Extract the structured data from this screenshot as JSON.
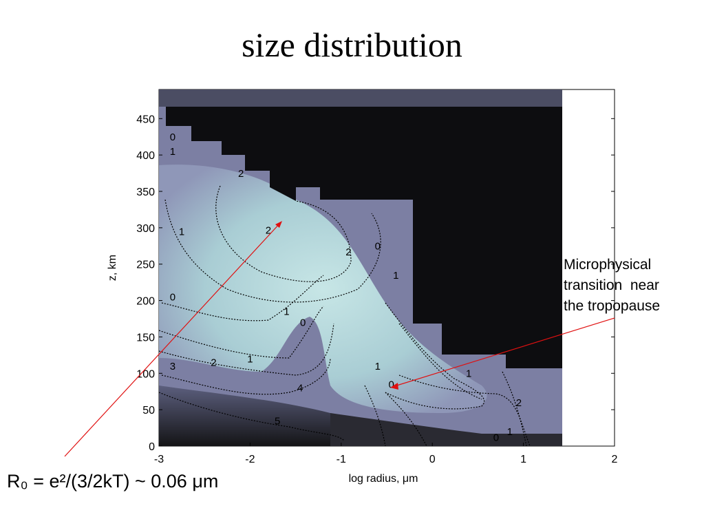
{
  "title": "size distribution",
  "annotations": {
    "microphysical": [
      "Microphysical",
      "transition  near",
      "the tropopause"
    ],
    "formula": "R₀ = e²/(3/2kT) ~ 0.06 μm"
  },
  "colors": {
    "background": "#ffffff",
    "dark": "#0b0b0b",
    "light": "#bfe0e0",
    "mid": "#8a8cb0",
    "arrow": "#e01010"
  },
  "chart_data": {
    "type": "heatmap",
    "title": "size distribution",
    "xlabel": "log radius, μm",
    "ylabel": "z, km",
    "xlim": [
      -3,
      2
    ],
    "ylim": [
      0,
      490
    ],
    "xticks": [
      -3,
      -2,
      -1,
      0,
      1,
      2
    ],
    "yticks": [
      0,
      50,
      100,
      150,
      200,
      250,
      300,
      350,
      400,
      450
    ],
    "contour_labels": [
      {
        "x": -1.8,
        "y": 292,
        "text": "2"
      },
      {
        "x": -0.92,
        "y": 262,
        "text": "2"
      },
      {
        "x": -2.75,
        "y": 290,
        "text": "1"
      },
      {
        "x": -2.85,
        "y": 200,
        "text": "0"
      },
      {
        "x": -1.6,
        "y": 180,
        "text": "1"
      },
      {
        "x": -1.42,
        "y": 165,
        "text": "0"
      },
      {
        "x": -2.4,
        "y": 110,
        "text": "2"
      },
      {
        "x": -2.0,
        "y": 115,
        "text": "1"
      },
      {
        "x": -2.85,
        "y": 105,
        "text": "3"
      },
      {
        "x": -1.45,
        "y": 75,
        "text": "4"
      },
      {
        "x": -1.7,
        "y": 30,
        "text": "5"
      },
      {
        "x": -0.45,
        "y": 80,
        "text": "0"
      },
      {
        "x": -0.6,
        "y": 105,
        "text": "1"
      },
      {
        "x": 0.4,
        "y": 95,
        "text": "1"
      },
      {
        "x": 0.7,
        "y": 7,
        "text": "0"
      },
      {
        "x": -0.6,
        "y": 270,
        "text": "0"
      },
      {
        "x": -0.4,
        "y": 230,
        "text": "1"
      },
      {
        "x": -2.85,
        "y": 420,
        "text": "0"
      },
      {
        "x": -2.85,
        "y": 400,
        "text": "1"
      },
      {
        "x": -2.1,
        "y": 370,
        "text": "2"
      },
      {
        "x": 0.95,
        "y": 55,
        "text": "2"
      },
      {
        "x": 0.85,
        "y": 15,
        "text": "1"
      }
    ]
  }
}
